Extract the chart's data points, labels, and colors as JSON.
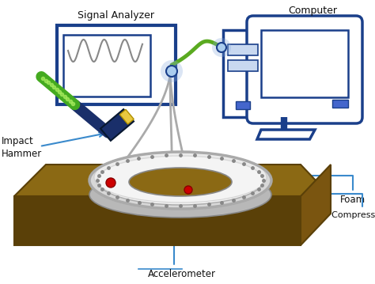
{
  "title": "",
  "background_color": "#ffffff",
  "labels": {
    "signal_analyzer": "Signal Analyzer",
    "computer": "Computer",
    "impact_hammer": "Impact\nHammer",
    "foam": "Foam",
    "rear_compressor": "Rear Compressor Casing",
    "accelerometer": "Accelerometer"
  },
  "colors": {
    "blue_border": "#1a3f8a",
    "blue_fill": "#c8d8f0",
    "blue_dark": "#1a2f6a",
    "gray_cable": "#aaaaaa",
    "green_cable": "#5aaa20",
    "brown_table": "#8B6914",
    "brown_dark": "#5a4008",
    "brown_side": "#7a5510",
    "hammer_head": "#1a2f6a",
    "hammer_handle_green": "#44aa20",
    "hammer_yellow": "#e8c840",
    "ring_gray": "#d0d0d0",
    "ring_border": "#999999",
    "ring_white": "#efefef",
    "red_sensor": "#cc0000",
    "white": "#ffffff",
    "text_color": "#111111",
    "label_line": "#3a8acc"
  },
  "figsize": [
    4.74,
    3.59
  ],
  "dpi": 100
}
